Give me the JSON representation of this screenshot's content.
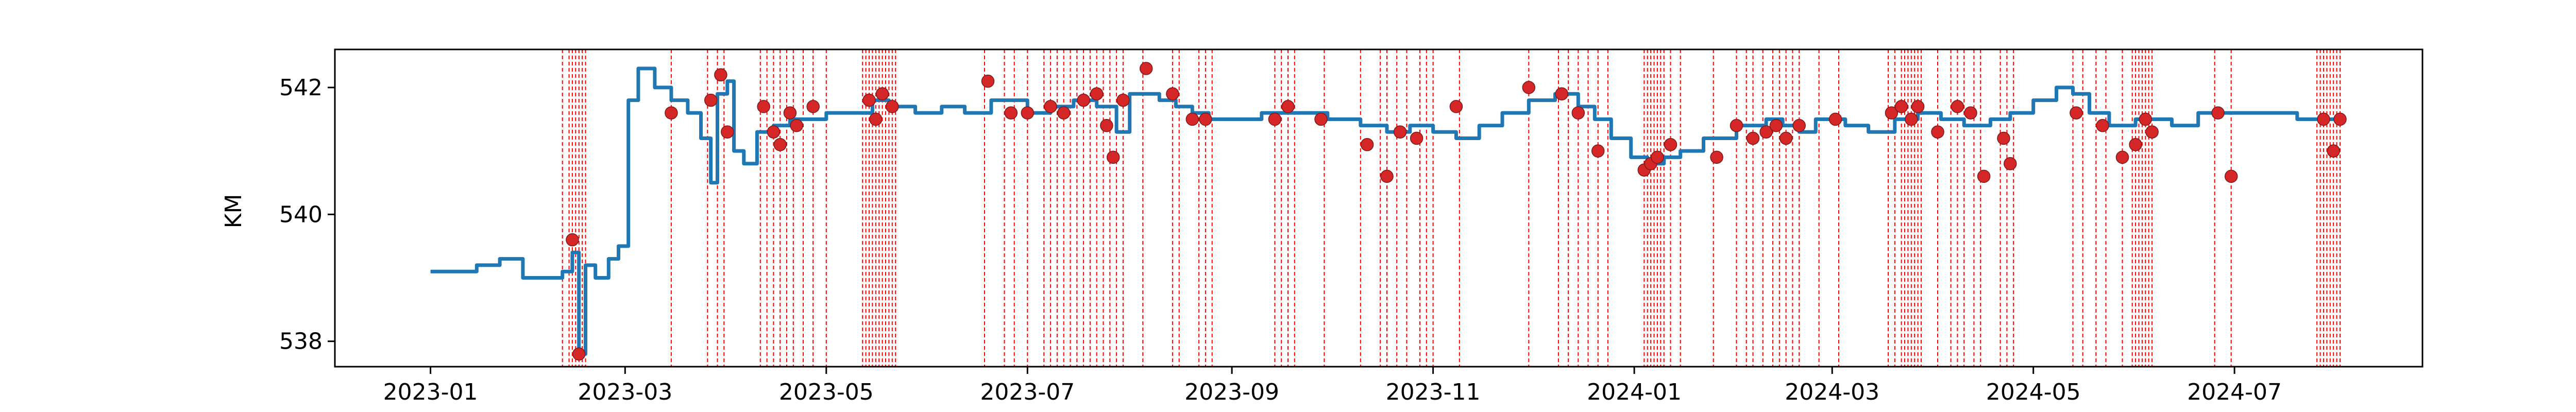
{
  "chart_data": {
    "type": "line",
    "title": "",
    "xlabel": "",
    "ylabel": "KM",
    "x_range": [
      "2022-12-03",
      "2024-08-27"
    ],
    "ylim": [
      537.6,
      542.6
    ],
    "y_ticks": [
      538,
      540,
      542
    ],
    "x_ticks": [
      "2023-01",
      "2023-03",
      "2023-05",
      "2023-07",
      "2023-09",
      "2023-11",
      "2024-01",
      "2024-03",
      "2024-05",
      "2024-07"
    ],
    "grid": false,
    "colors": {
      "line": "#1f77b4",
      "marker": "#d62728",
      "event_line": "#ff0000"
    },
    "series": [
      {
        "x": [
          "2023-01-01",
          "2023-01-08",
          "2023-01-15",
          "2023-01-22",
          "2023-01-29",
          "2023-02-05",
          "2023-02-10",
          "2023-02-13",
          "2023-02-15",
          "2023-02-17",
          "2023-02-20",
          "2023-02-24",
          "2023-02-27",
          "2023-03-02",
          "2023-03-05",
          "2023-03-10",
          "2023-03-15",
          "2023-03-20",
          "2023-03-24",
          "2023-03-27",
          "2023-03-29",
          "2023-04-01",
          "2023-04-03",
          "2023-04-06",
          "2023-04-10",
          "2023-04-15",
          "2023-04-20",
          "2023-04-25",
          "2023-05-01",
          "2023-05-08",
          "2023-05-15",
          "2023-05-20",
          "2023-05-28",
          "2023-06-05",
          "2023-06-12",
          "2023-06-20",
          "2023-06-26",
          "2023-07-01",
          "2023-07-08",
          "2023-07-15",
          "2023-07-22",
          "2023-07-28",
          "2023-08-01",
          "2023-08-05",
          "2023-08-10",
          "2023-08-15",
          "2023-08-20",
          "2023-08-25",
          "2023-09-01",
          "2023-09-10",
          "2023-09-20",
          "2023-09-30",
          "2023-10-10",
          "2023-10-18",
          "2023-10-25",
          "2023-11-01",
          "2023-11-08",
          "2023-11-15",
          "2023-11-22",
          "2023-11-30",
          "2023-12-08",
          "2023-12-15",
          "2023-12-20",
          "2023-12-25",
          "2023-12-31",
          "2024-01-05",
          "2024-01-10",
          "2024-01-15",
          "2024-01-22",
          "2024-02-01",
          "2024-02-10",
          "2024-02-15",
          "2024-02-20",
          "2024-02-25",
          "2024-03-05",
          "2024-03-12",
          "2024-03-20",
          "2024-03-27",
          "2024-04-03",
          "2024-04-10",
          "2024-04-18",
          "2024-04-24",
          "2024-05-01",
          "2024-05-08",
          "2024-05-13",
          "2024-05-18",
          "2024-05-24",
          "2024-06-01",
          "2024-06-05",
          "2024-06-12",
          "2024-06-20",
          "2024-06-30",
          "2024-07-05",
          "2024-07-12",
          "2024-07-20",
          "2024-07-28",
          "2024-08-02"
        ],
        "y": [
          539.1,
          539.1,
          539.2,
          539.3,
          539.0,
          539.0,
          539.1,
          539.4,
          537.8,
          539.2,
          539.0,
          539.3,
          539.5,
          541.8,
          542.3,
          542.0,
          541.8,
          541.6,
          541.2,
          540.5,
          541.9,
          542.1,
          541.0,
          540.8,
          541.3,
          541.4,
          541.5,
          541.5,
          541.6,
          541.6,
          541.8,
          541.7,
          541.6,
          541.7,
          541.6,
          541.8,
          541.8,
          541.6,
          541.7,
          541.8,
          541.7,
          541.3,
          541.9,
          541.9,
          541.8,
          541.7,
          541.6,
          541.5,
          541.5,
          541.6,
          541.6,
          541.5,
          541.4,
          541.3,
          541.4,
          541.3,
          541.2,
          541.4,
          541.6,
          541.8,
          541.9,
          541.7,
          541.5,
          541.2,
          540.9,
          540.8,
          540.9,
          541.0,
          541.2,
          541.4,
          541.5,
          541.4,
          541.3,
          541.5,
          541.4,
          541.3,
          541.5,
          541.6,
          541.5,
          541.4,
          541.5,
          541.6,
          541.8,
          542.0,
          541.9,
          541.6,
          541.4,
          541.5,
          541.5,
          541.4,
          541.6,
          541.6,
          541.6,
          541.6,
          541.5,
          541.5,
          541.5
        ]
      }
    ],
    "markers": {
      "x": [
        "2023-02-13",
        "2023-02-15",
        "2023-03-15",
        "2023-03-27",
        "2023-03-30",
        "2023-04-01",
        "2023-04-12",
        "2023-04-15",
        "2023-04-17",
        "2023-04-20",
        "2023-04-22",
        "2023-04-27",
        "2023-05-14",
        "2023-05-16",
        "2023-05-18",
        "2023-05-21",
        "2023-06-19",
        "2023-06-26",
        "2023-07-01",
        "2023-07-08",
        "2023-07-12",
        "2023-07-18",
        "2023-07-22",
        "2023-07-25",
        "2023-07-27",
        "2023-07-30",
        "2023-08-06",
        "2023-08-14",
        "2023-08-20",
        "2023-08-24",
        "2023-09-14",
        "2023-09-18",
        "2023-09-28",
        "2023-10-12",
        "2023-10-18",
        "2023-10-22",
        "2023-10-27",
        "2023-11-08",
        "2023-11-30",
        "2023-12-10",
        "2023-12-15",
        "2023-12-21",
        "2024-01-04",
        "2024-01-06",
        "2024-01-08",
        "2024-01-12",
        "2024-01-26",
        "2024-02-01",
        "2024-02-06",
        "2024-02-10",
        "2024-02-13",
        "2024-02-16",
        "2024-02-20",
        "2024-03-02",
        "2024-03-19",
        "2024-03-22",
        "2024-03-25",
        "2024-03-27",
        "2024-04-02",
        "2024-04-08",
        "2024-04-12",
        "2024-04-16",
        "2024-04-22",
        "2024-04-24",
        "2024-05-14",
        "2024-05-22",
        "2024-05-28",
        "2024-06-01",
        "2024-06-04",
        "2024-06-06",
        "2024-06-26",
        "2024-06-30",
        "2024-07-28",
        "2024-07-31",
        "2024-08-02"
      ],
      "y": [
        539.6,
        537.8,
        541.6,
        541.8,
        542.2,
        541.3,
        541.7,
        541.3,
        541.1,
        541.6,
        541.4,
        541.7,
        541.8,
        541.5,
        541.9,
        541.7,
        542.1,
        541.6,
        541.6,
        541.7,
        541.6,
        541.8,
        541.9,
        541.4,
        540.9,
        541.8,
        542.3,
        541.9,
        541.5,
        541.5,
        541.5,
        541.7,
        541.5,
        541.1,
        540.6,
        541.3,
        541.2,
        541.7,
        542.0,
        541.9,
        541.6,
        541.0,
        540.7,
        540.8,
        540.9,
        541.1,
        540.9,
        541.4,
        541.2,
        541.3,
        541.4,
        541.2,
        541.4,
        541.5,
        541.6,
        541.7,
        541.5,
        541.7,
        541.3,
        541.7,
        541.6,
        540.6,
        541.2,
        540.8,
        541.6,
        541.4,
        540.9,
        541.1,
        541.5,
        541.3,
        541.6,
        540.6,
        541.5,
        541.0,
        541.5
      ]
    },
    "event_lines": [
      "2023-02-10",
      "2023-02-12",
      "2023-02-13",
      "2023-02-14",
      "2023-02-15",
      "2023-02-16",
      "2023-02-17",
      "2023-03-15",
      "2023-03-26",
      "2023-03-29",
      "2023-03-31",
      "2023-04-11",
      "2023-04-13",
      "2023-04-15",
      "2023-04-17",
      "2023-04-19",
      "2023-04-21",
      "2023-04-24",
      "2023-04-27",
      "2023-05-01",
      "2023-05-12",
      "2023-05-13",
      "2023-05-14",
      "2023-05-15",
      "2023-05-16",
      "2023-05-17",
      "2023-05-18",
      "2023-05-19",
      "2023-05-20",
      "2023-05-21",
      "2023-05-22",
      "2023-06-18",
      "2023-06-24",
      "2023-06-27",
      "2023-07-01",
      "2023-07-06",
      "2023-07-08",
      "2023-07-10",
      "2023-07-12",
      "2023-07-14",
      "2023-07-16",
      "2023-07-18",
      "2023-07-20",
      "2023-07-22",
      "2023-07-24",
      "2023-07-26",
      "2023-07-28",
      "2023-07-30",
      "2023-08-05",
      "2023-08-14",
      "2023-08-16",
      "2023-08-22",
      "2023-08-24",
      "2023-08-26",
      "2023-09-14",
      "2023-09-16",
      "2023-09-18",
      "2023-09-20",
      "2023-09-29",
      "2023-10-10",
      "2023-10-16",
      "2023-10-18",
      "2023-10-21",
      "2023-10-24",
      "2023-10-28",
      "2023-10-30",
      "2023-11-01",
      "2023-11-09",
      "2023-11-30",
      "2023-12-09",
      "2023-12-12",
      "2023-12-15",
      "2023-12-18",
      "2023-12-21",
      "2023-12-24",
      "2024-01-04",
      "2024-01-05",
      "2024-01-06",
      "2024-01-07",
      "2024-01-08",
      "2024-01-09",
      "2024-01-10",
      "2024-01-12",
      "2024-01-15",
      "2024-01-25",
      "2024-02-01",
      "2024-02-04",
      "2024-02-06",
      "2024-02-09",
      "2024-02-12",
      "2024-02-14",
      "2024-02-16",
      "2024-02-18",
      "2024-02-20",
      "2024-02-26",
      "2024-03-03",
      "2024-03-18",
      "2024-03-20",
      "2024-03-22",
      "2024-03-23",
      "2024-03-24",
      "2024-03-25",
      "2024-03-26",
      "2024-03-27",
      "2024-03-28",
      "2024-04-02",
      "2024-04-06",
      "2024-04-08",
      "2024-04-10",
      "2024-04-13",
      "2024-04-15",
      "2024-04-21",
      "2024-04-23",
      "2024-04-25",
      "2024-05-13",
      "2024-05-16",
      "2024-05-20",
      "2024-05-23",
      "2024-05-28",
      "2024-05-31",
      "2024-06-01",
      "2024-06-02",
      "2024-06-03",
      "2024-06-04",
      "2024-06-05",
      "2024-06-06",
      "2024-06-25",
      "2024-06-30",
      "2024-07-26",
      "2024-07-27",
      "2024-07-28",
      "2024-07-29",
      "2024-07-30",
      "2024-07-31",
      "2024-08-01",
      "2024-08-02"
    ]
  }
}
